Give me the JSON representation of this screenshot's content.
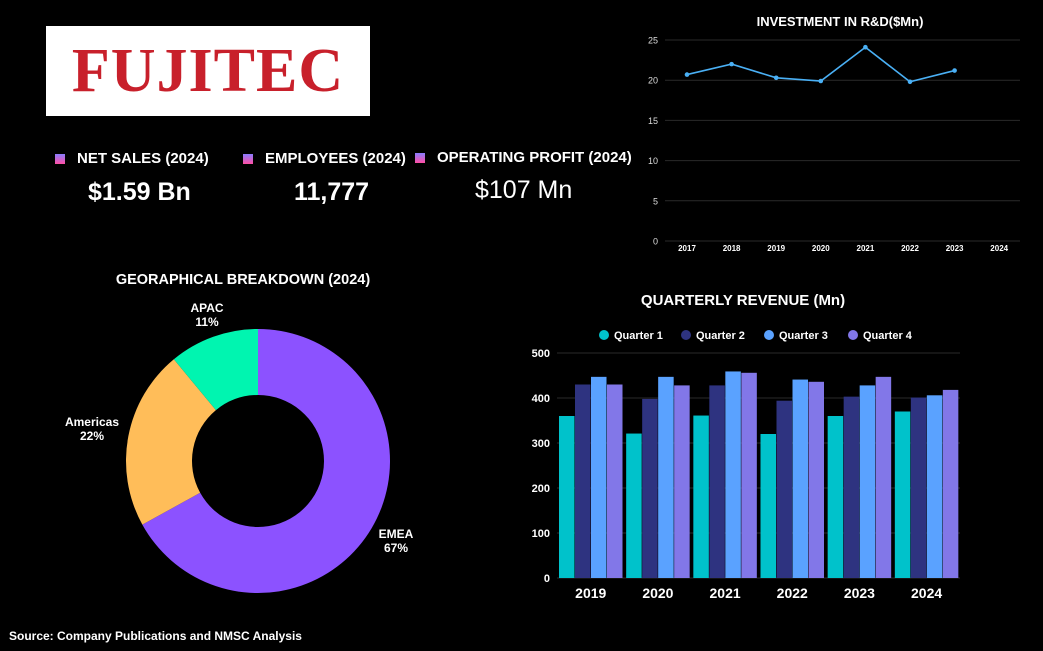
{
  "logo": {
    "text": "FUJITEC",
    "color": "#c8202b"
  },
  "kpis": [
    {
      "label": "NET SALES (2024)",
      "value": "$1.59 Bn"
    },
    {
      "label": "EMPLOYEES (2024)",
      "value": "11,777"
    },
    {
      "label": "OPERATING PROFIT (2024)",
      "value": "$107 Mn"
    }
  ],
  "source": "Source: Company Publications and NMSC Analysis",
  "chart_data": [
    {
      "type": "line",
      "title": "INVESTMENT IN R&D($Mn)",
      "x": [
        "2017",
        "2018",
        "2019",
        "2020",
        "2021",
        "2022",
        "2023",
        "2024"
      ],
      "series": [
        {
          "values": [
            20.7,
            22.0,
            20.3,
            19.9,
            24.1,
            19.8,
            21.2,
            null
          ],
          "color": "#4ab0f5"
        }
      ],
      "yticks": [
        0,
        5,
        10,
        15,
        20,
        25
      ],
      "ylim": [
        0,
        25
      ],
      "grid": true
    },
    {
      "type": "pie",
      "title": "GEORAPHICAL BREAKDOWN (2024)",
      "donut": true,
      "slices": [
        {
          "label": "EMEA",
          "value": 67,
          "pct": "67%",
          "color": "#8c52ff"
        },
        {
          "label": "Americas",
          "value": 22,
          "pct": "22%",
          "color": "#ffbd59"
        },
        {
          "label": "APAC",
          "value": 11,
          "pct": "11%",
          "color": "#00f5b0"
        }
      ]
    },
    {
      "type": "bar",
      "title": "QUARTERLY REVENUE (Mn)",
      "categories": [
        "2019",
        "2020",
        "2021",
        "2022",
        "2023",
        "2024"
      ],
      "series": [
        {
          "name": "Quarter 1",
          "values": [
            360,
            321,
            361,
            320,
            360,
            370
          ],
          "color": "#00c2cb"
        },
        {
          "name": "Quarter 2",
          "values": [
            430,
            398,
            428,
            394,
            403,
            401
          ],
          "color": "#2e3380"
        },
        {
          "name": "Quarter 3",
          "values": [
            447,
            447,
            459,
            441,
            428,
            406
          ],
          "color": "#5aa2ff"
        },
        {
          "name": "Quarter 4",
          "values": [
            430,
            428,
            456,
            436,
            447,
            418
          ],
          "color": "#8277e8"
        }
      ],
      "yticks": [
        0,
        100,
        200,
        300,
        400,
        500
      ],
      "ylim": [
        0,
        500
      ],
      "legend": "top",
      "grid": true
    }
  ]
}
